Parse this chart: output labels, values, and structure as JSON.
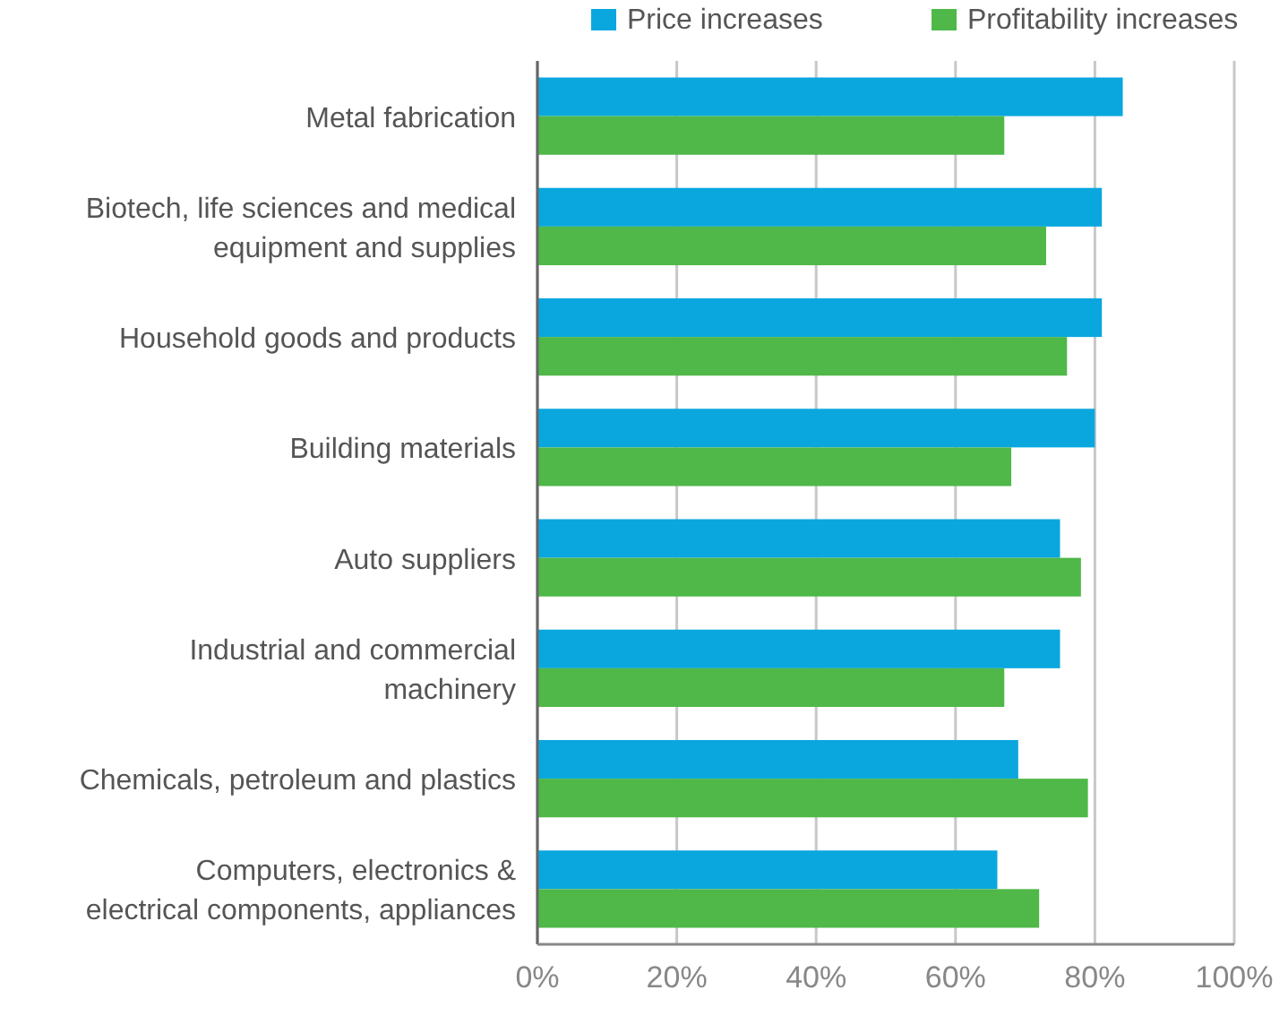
{
  "chart_data": {
    "type": "bar",
    "orientation": "horizontal",
    "categories": [
      "Metal fabrication",
      "Biotech, life sciences and medical equipment and supplies",
      "Household goods and products",
      "Building materials",
      "Auto suppliers",
      "Industrial and commercial machinery",
      "Chemicals, petroleum and plastics",
      "Computers, electronics & electrical components, appliances"
    ],
    "series": [
      {
        "name": "Price increases",
        "color": "#0aa7de",
        "values": [
          84,
          81,
          81,
          80,
          75,
          75,
          69,
          66
        ]
      },
      {
        "name": "Profitability increases",
        "color": "#4fb848",
        "values": [
          67,
          73,
          76,
          68,
          78,
          67,
          79,
          72
        ]
      }
    ],
    "xlim": [
      0,
      100
    ],
    "xticks": [
      {
        "value": 0,
        "label": "0%"
      },
      {
        "value": 20,
        "label": "20%"
      },
      {
        "value": 40,
        "label": "40%"
      },
      {
        "value": 60,
        "label": "60%"
      },
      {
        "value": 80,
        "label": "80%"
      },
      {
        "value": 100,
        "label": "100%"
      }
    ],
    "grid": "x",
    "legend": "top"
  }
}
